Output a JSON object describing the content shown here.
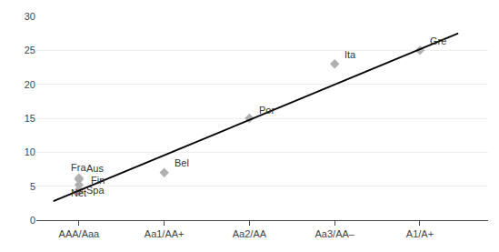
{
  "chart_data": {
    "type": "scatter",
    "xlim": [
      -0.5,
      4.8
    ],
    "xticks": [
      {
        "value": 0,
        "label": "AAA/Aaa"
      },
      {
        "value": 1,
        "label": "Aa1/AA+"
      },
      {
        "value": 2,
        "label": "Aa2/AA"
      },
      {
        "value": 3,
        "label": "Aa3/AA–"
      },
      {
        "value": 4,
        "label": "A1/A+"
      }
    ],
    "ylim": [
      0,
      30
    ],
    "yticks": [
      0,
      5,
      10,
      15,
      20,
      25,
      30
    ],
    "grid": "y",
    "series": [
      {
        "type": "scatter",
        "marker": "diamond",
        "color": "#b0b0b0",
        "x": [
          0,
          0,
          0,
          0,
          0,
          1,
          2,
          3,
          4
        ],
        "values": [
          6.2,
          6.0,
          4.2,
          4.5,
          5.2,
          7.0,
          15.0,
          23.0,
          25.0
        ],
        "labels": [
          "Fra",
          "Aus",
          "Net",
          "Spa",
          "Fin",
          "Bel",
          "Por",
          "Ita",
          "Gre"
        ]
      },
      {
        "type": "line",
        "color": "#000000",
        "x": [
          -0.3,
          4.45
        ],
        "values": [
          2.8,
          27.5
        ]
      }
    ]
  }
}
